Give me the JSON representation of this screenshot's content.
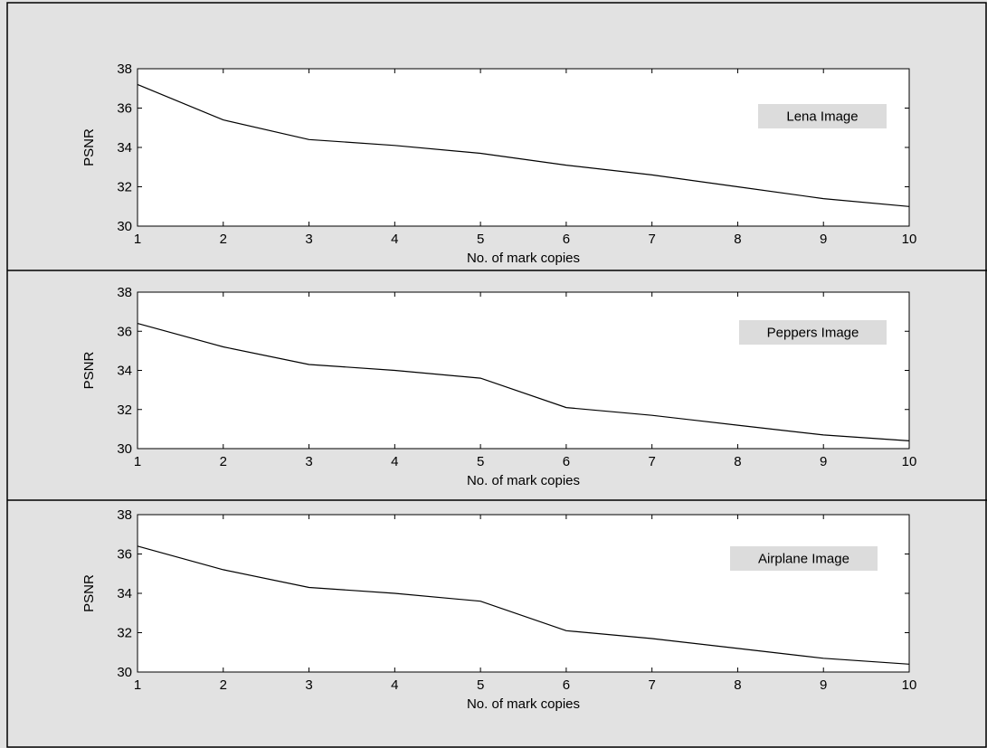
{
  "colors": {
    "figure_background": "#e2e2e2",
    "axes_background": "#ffffff",
    "legend_background": "#dcdcdc",
    "line_color": "#000000",
    "frame_color": "#000000"
  },
  "chart_data": [
    {
      "type": "line",
      "xlabel": "No. of mark copies",
      "ylabel": "PSNR",
      "xlim": [
        1,
        10
      ],
      "ylim": [
        30,
        38
      ],
      "xticks": [
        1,
        2,
        3,
        4,
        5,
        6,
        7,
        8,
        9,
        10
      ],
      "yticks": [
        30,
        32,
        34,
        36,
        38
      ],
      "grid": false,
      "legend_position": "top-right",
      "annotation": "Lena Image",
      "x": [
        1,
        2,
        3,
        4,
        5,
        6,
        7,
        8,
        9,
        10
      ],
      "values": [
        37.2,
        35.4,
        34.4,
        34.1,
        33.7,
        33.1,
        32.6,
        32.0,
        31.4,
        31.0
      ]
    },
    {
      "type": "line",
      "xlabel": "No. of mark copies",
      "ylabel": "PSNR",
      "xlim": [
        1,
        10
      ],
      "ylim": [
        30,
        38
      ],
      "xticks": [
        1,
        2,
        3,
        4,
        5,
        6,
        7,
        8,
        9,
        10
      ],
      "yticks": [
        30,
        32,
        34,
        36,
        38
      ],
      "grid": false,
      "legend_position": "top-right",
      "annotation": "Peppers Image",
      "x": [
        1,
        2,
        3,
        4,
        5,
        6,
        7,
        8,
        9,
        10
      ],
      "values": [
        36.4,
        35.2,
        34.3,
        34.0,
        33.6,
        32.1,
        31.7,
        31.2,
        30.7,
        30.4
      ]
    },
    {
      "type": "line",
      "xlabel": "No. of mark copies",
      "ylabel": "PSNR",
      "xlim": [
        1,
        10
      ],
      "ylim": [
        30,
        38
      ],
      "xticks": [
        1,
        2,
        3,
        4,
        5,
        6,
        7,
        8,
        9,
        10
      ],
      "yticks": [
        30,
        32,
        34,
        36,
        38
      ],
      "grid": false,
      "legend_position": "top-right",
      "annotation": "Airplane Image",
      "x": [
        1,
        2,
        3,
        4,
        5,
        6,
        7,
        8,
        9,
        10
      ],
      "values": [
        36.4,
        35.2,
        34.3,
        34.0,
        33.6,
        32.1,
        31.7,
        31.2,
        30.7,
        30.4
      ]
    }
  ]
}
